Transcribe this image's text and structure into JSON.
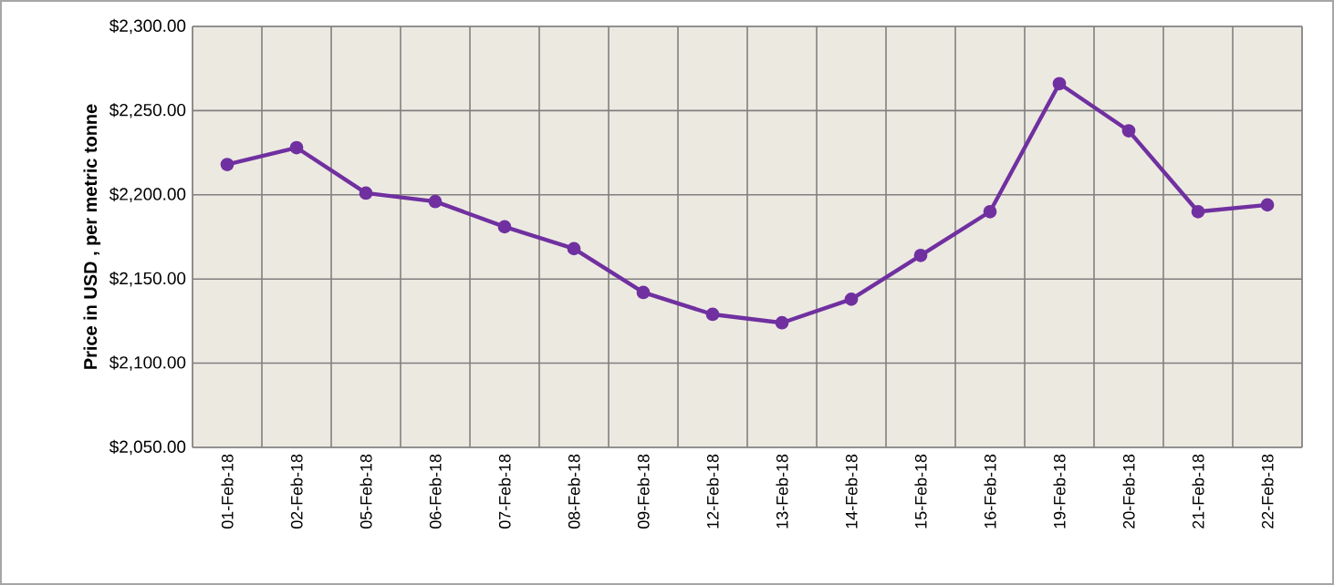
{
  "chart_data": {
    "type": "line",
    "ylabel": "Price in USD , per metric tonne",
    "categories": [
      "01-Feb-18",
      "02-Feb-18",
      "05-Feb-18",
      "06-Feb-18",
      "07-Feb-18",
      "08-Feb-18",
      "09-Feb-18",
      "12-Feb-18",
      "13-Feb-18",
      "14-Feb-18",
      "15-Feb-18",
      "16-Feb-18",
      "19-Feb-18",
      "20-Feb-18",
      "21-Feb-18",
      "22-Feb-18"
    ],
    "series": [
      {
        "color": "#7030a0",
        "values": [
          2218,
          2228,
          2201,
          2196,
          2181,
          2168,
          2142,
          2129,
          2124,
          2138,
          2164,
          2190,
          2266,
          2238,
          2190,
          2194
        ]
      }
    ],
    "ylim": [
      2050,
      2300
    ],
    "yticks": [
      {
        "value": 2050,
        "label": "$2,050.00"
      },
      {
        "value": 2100,
        "label": "$2,100.00"
      },
      {
        "value": 2150,
        "label": "$2,150.00"
      },
      {
        "value": 2200,
        "label": "$2,200.00"
      },
      {
        "value": 2250,
        "label": "$2,250.00"
      },
      {
        "value": 2300,
        "label": "$2,300.00"
      }
    ],
    "grid": true,
    "marker": "circle",
    "line_style": "solid"
  }
}
